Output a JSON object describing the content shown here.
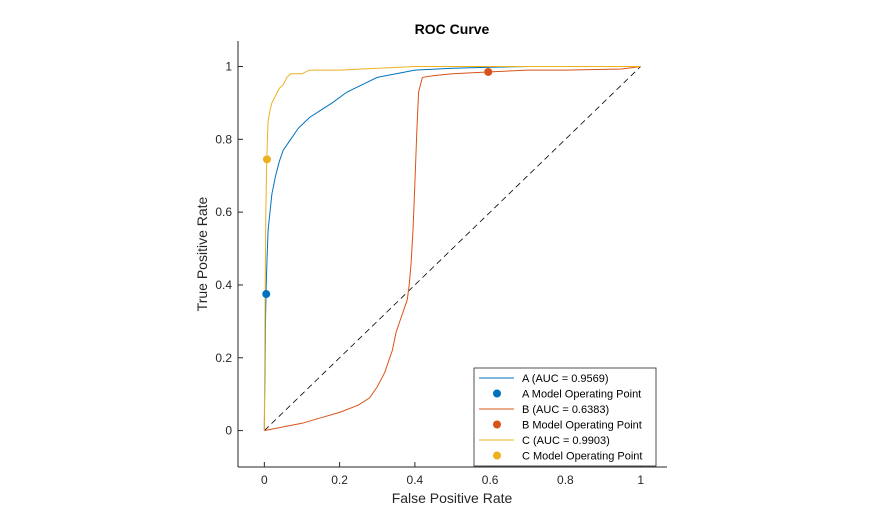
{
  "chart_data": {
    "type": "line",
    "title": "ROC Curve",
    "xlabel": "False Positive Rate",
    "ylabel": "True Positive Rate",
    "xlim": [
      -0.07,
      1.07
    ],
    "ylim": [
      -0.1,
      1.07
    ],
    "xticks": [
      0,
      0.2,
      0.4,
      0.6,
      0.8,
      1
    ],
    "xtick_labels": [
      "0",
      "0.2",
      "0.4",
      "0.6",
      "0.8",
      "1"
    ],
    "yticks": [
      0,
      0.2,
      0.4,
      0.6,
      0.8,
      1
    ],
    "ytick_labels": [
      "0",
      "0.2",
      "0.4",
      "0.6",
      "0.8",
      "1"
    ],
    "grid": false,
    "legend_position": "bottom-right",
    "diagonal": {
      "x": [
        0,
        1
      ],
      "y": [
        0,
        1
      ],
      "style": "dashed",
      "color": "#000000"
    },
    "series": [
      {
        "name": "A (AUC = 0.9569)",
        "color": "#0072BD",
        "x": [
          0,
          0.003,
          0.005,
          0.008,
          0.01,
          0.015,
          0.02,
          0.03,
          0.04,
          0.05,
          0.07,
          0.09,
          0.12,
          0.15,
          0.18,
          0.22,
          0.26,
          0.3,
          0.35,
          0.4,
          0.5,
          0.6,
          0.7,
          0.8,
          1.0
        ],
        "y": [
          0,
          0.3,
          0.4,
          0.5,
          0.55,
          0.6,
          0.65,
          0.7,
          0.74,
          0.77,
          0.8,
          0.83,
          0.86,
          0.88,
          0.9,
          0.93,
          0.95,
          0.97,
          0.98,
          0.99,
          0.995,
          0.998,
          1.0,
          1.0,
          1.0
        ]
      },
      {
        "name": "B (AUC = 0.6383)",
        "color": "#D95319",
        "x": [
          0,
          0.05,
          0.1,
          0.15,
          0.2,
          0.25,
          0.28,
          0.3,
          0.32,
          0.34,
          0.35,
          0.36,
          0.37,
          0.38,
          0.385,
          0.39,
          0.395,
          0.4,
          0.405,
          0.41,
          0.42,
          0.45,
          0.5,
          0.6,
          0.7,
          0.8,
          0.9,
          0.95,
          1.0
        ],
        "y": [
          0,
          0.01,
          0.02,
          0.035,
          0.05,
          0.07,
          0.09,
          0.12,
          0.16,
          0.22,
          0.27,
          0.3,
          0.33,
          0.36,
          0.4,
          0.46,
          0.55,
          0.68,
          0.82,
          0.93,
          0.97,
          0.975,
          0.98,
          0.985,
          0.99,
          0.99,
          0.992,
          0.993,
          1.0
        ]
      },
      {
        "name": "C (AUC = 0.9903)",
        "color": "#EDB120",
        "x": [
          0,
          0.002,
          0.004,
          0.006,
          0.008,
          0.01,
          0.015,
          0.02,
          0.03,
          0.04,
          0.05,
          0.06,
          0.07,
          0.1,
          0.12,
          0.2,
          0.3,
          0.4,
          0.5,
          0.6,
          1.0
        ],
        "y": [
          0,
          0.35,
          0.6,
          0.72,
          0.8,
          0.85,
          0.88,
          0.9,
          0.92,
          0.94,
          0.95,
          0.97,
          0.98,
          0.98,
          0.99,
          0.99,
          0.995,
          1.0,
          1.0,
          1.0,
          1.0
        ]
      }
    ],
    "operating_points": [
      {
        "name": "A Model Operating Point",
        "color": "#0072BD",
        "x": 0.005,
        "y": 0.375
      },
      {
        "name": "B Model Operating Point",
        "color": "#D95319",
        "x": 0.595,
        "y": 0.985
      },
      {
        "name": "C Model Operating Point",
        "color": "#EDB120",
        "x": 0.007,
        "y": 0.745
      }
    ],
    "legend": [
      {
        "label": "A (AUC = 0.9569)",
        "kind": "line",
        "color": "#0072BD"
      },
      {
        "label": "A Model Operating Point",
        "kind": "marker",
        "color": "#0072BD"
      },
      {
        "label": "B (AUC = 0.6383)",
        "kind": "line",
        "color": "#D95319"
      },
      {
        "label": "B Model Operating Point",
        "kind": "marker",
        "color": "#D95319"
      },
      {
        "label": "C (AUC = 0.9903)",
        "kind": "line",
        "color": "#EDB120"
      },
      {
        "label": "C Model Operating Point",
        "kind": "marker",
        "color": "#EDB120"
      }
    ]
  }
}
